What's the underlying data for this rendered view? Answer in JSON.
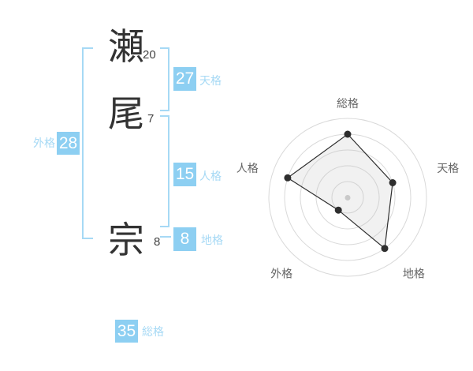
{
  "name": {
    "characters": [
      {
        "char": "瀬",
        "strokes": "20"
      },
      {
        "char": "尾",
        "strokes": "7"
      },
      {
        "char": "宗",
        "strokes": "8"
      }
    ],
    "kaku": {
      "tenkaku": {
        "value": "27",
        "label": "天格"
      },
      "jinkaku": {
        "value": "15",
        "label": "人格"
      },
      "chikaku": {
        "value": "8",
        "label": "地格"
      },
      "gaikaku": {
        "value": "28",
        "label": "外格"
      },
      "soukaku": {
        "value": "35",
        "label": "総格"
      }
    }
  },
  "colors": {
    "badge_blue": "#8dcff2",
    "label_blue": "#a6d9f5",
    "bracket_blue": "#a6d9f5",
    "kanji_dark": "#333333"
  },
  "chart_data": {
    "type": "radar",
    "categories": [
      "総格",
      "天格",
      "地格",
      "外格",
      "人格"
    ],
    "values": [
      4,
      3,
      4,
      1,
      4
    ],
    "max": 5,
    "rings": 5,
    "start_angle_deg": -90,
    "direction": "clockwise",
    "grid": "concentric-circles",
    "ring_color": "#d9d9d9",
    "line_color": "#2e2e2e",
    "dot_color": "#2e2e2e",
    "fill_color": "rgba(190,190,190,0.22)",
    "center_dot_color": "#c9c9c9",
    "label_color": "#666666"
  }
}
